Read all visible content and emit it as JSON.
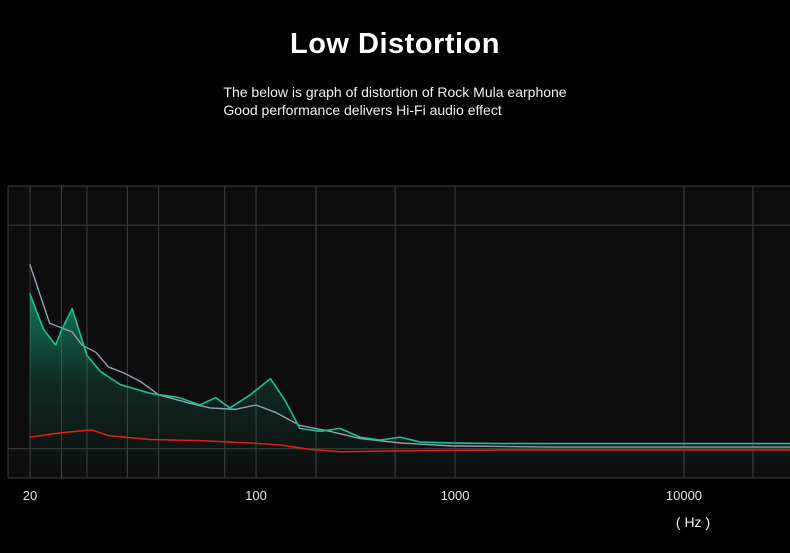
{
  "header": {
    "title": "Low Distortion",
    "subtitle_line1": "The below is graph of distortion of Rock Mula earphone",
    "subtitle_line2": "Good performance delivers Hi-Fi audio effect"
  },
  "axis": {
    "unit_label": "( Hz )"
  },
  "chart_data": {
    "type": "line",
    "title": "Low Distortion",
    "xlabel": "( Hz )",
    "ylabel": "",
    "x_scale": "log",
    "ylim": [
      0,
      100
    ],
    "legend": "none",
    "plot_bg": "#0d0d0d",
    "x_ticks": [
      {
        "label": "20",
        "freq": 20
      },
      {
        "label": "100",
        "freq": 100
      },
      {
        "label": "1000",
        "freq": 1000
      },
      {
        "label": "10000",
        "freq": 10000
      }
    ],
    "x_anchors": [
      [
        20,
        0.038
      ],
      [
        100,
        0.3241
      ],
      [
        1000,
        0.576
      ],
      [
        10000,
        0.8658
      ]
    ],
    "grid": {
      "color": "#414141",
      "v_freqs": [
        20,
        25,
        30,
        40,
        50,
        80,
        100,
        200,
        500,
        1000,
        10000,
        20000
      ],
      "h_fracs": [
        0,
        0.134,
        0.9,
        1.0
      ]
    },
    "series": [
      {
        "name": "distortion-gray",
        "color": "#94a0b2",
        "width": 1.4,
        "area_fill": false,
        "points": [
          [
            20,
            73
          ],
          [
            23,
            53
          ],
          [
            27,
            50
          ],
          [
            29,
            45.5
          ],
          [
            32,
            43
          ],
          [
            35,
            38
          ],
          [
            39,
            36
          ],
          [
            44,
            33
          ],
          [
            50,
            28.5
          ],
          [
            56,
            27
          ],
          [
            63,
            25.5
          ],
          [
            72,
            24
          ],
          [
            86,
            23.5
          ],
          [
            100,
            25
          ],
          [
            125,
            22.5
          ],
          [
            166,
            18
          ],
          [
            235,
            16
          ],
          [
            333,
            13.5
          ],
          [
            530,
            12
          ],
          [
            950,
            11
          ],
          [
            2600,
            10.6
          ],
          [
            29000,
            10.6
          ]
        ]
      },
      {
        "name": "distortion-green",
        "color": "#1dc18c",
        "width": 1.6,
        "area_fill": true,
        "points": [
          [
            20,
            63
          ],
          [
            22,
            51
          ],
          [
            24,
            45.5
          ],
          [
            25,
            50.5
          ],
          [
            27,
            58
          ],
          [
            30,
            42
          ],
          [
            33,
            36.5
          ],
          [
            38,
            32
          ],
          [
            47,
            29
          ],
          [
            58,
            27.5
          ],
          [
            67,
            25
          ],
          [
            75,
            27.5
          ],
          [
            83,
            24
          ],
          [
            96,
            28.5
          ],
          [
            118,
            34
          ],
          [
            140,
            26.5
          ],
          [
            166,
            17
          ],
          [
            210,
            16
          ],
          [
            264,
            17
          ],
          [
            333,
            14
          ],
          [
            420,
            13
          ],
          [
            530,
            14
          ],
          [
            670,
            12.3
          ],
          [
            950,
            12
          ],
          [
            1600,
            11.8
          ],
          [
            4300,
            11.8
          ],
          [
            10000,
            11.8
          ],
          [
            29000,
            11.8
          ]
        ]
      },
      {
        "name": "distortion-red",
        "color": "#e01f1f",
        "width": 1.5,
        "area_fill": false,
        "points": [
          [
            20,
            14
          ],
          [
            25,
            15.5
          ],
          [
            31,
            16.5
          ],
          [
            35,
            14.5
          ],
          [
            47,
            13.2
          ],
          [
            67,
            12.8
          ],
          [
            96,
            12
          ],
          [
            132,
            11.3
          ],
          [
            187,
            9.8
          ],
          [
            264,
            9
          ],
          [
            530,
            9.3
          ],
          [
            1600,
            9.6
          ],
          [
            29000,
            9.6
          ]
        ]
      }
    ]
  }
}
